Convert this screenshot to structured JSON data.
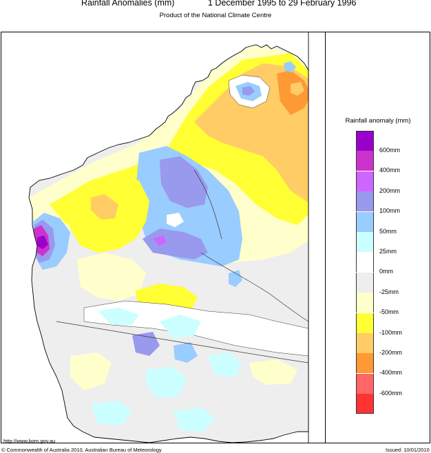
{
  "header": {
    "title": "Rainfall Anomalies (mm)",
    "period": "1 December 1995 to 29 February 1996",
    "subtitle": "Product of the National Climate Centre"
  },
  "legend": {
    "title": "Rainfall anomaly (mm)",
    "items": [
      {
        "label": "600mm",
        "color": "#9900cc"
      },
      {
        "label": "400mm",
        "color": "#cc33cc"
      },
      {
        "label": "200mm",
        "color": "#cc66ff"
      },
      {
        "label": "100mm",
        "color": "#9999ee"
      },
      {
        "label": "50mm",
        "color": "#99ccff"
      },
      {
        "label": "25mm",
        "color": "#ccffff"
      },
      {
        "label": "0mm",
        "color": "#ffffff"
      },
      {
        "label": "-25mm",
        "color": "#eeeeee"
      },
      {
        "label": "-50mm",
        "color": "#ffffcc"
      },
      {
        "label": "-100mm",
        "color": "#ffff33"
      },
      {
        "label": "-200mm",
        "color": "#ffcc66"
      },
      {
        "label": "-400mm",
        "color": "#ff9933"
      },
      {
        "label": "-600mm",
        "color": "#ff6666"
      },
      {
        "label": "",
        "color": "#ff3333"
      }
    ]
  },
  "footer": {
    "url": "http://www.bom.gov.au",
    "copyright": "© Commonwealth of Australia 2010, Australian Bureau of Meteorology",
    "issued": "Issued: 10/01/2010"
  }
}
